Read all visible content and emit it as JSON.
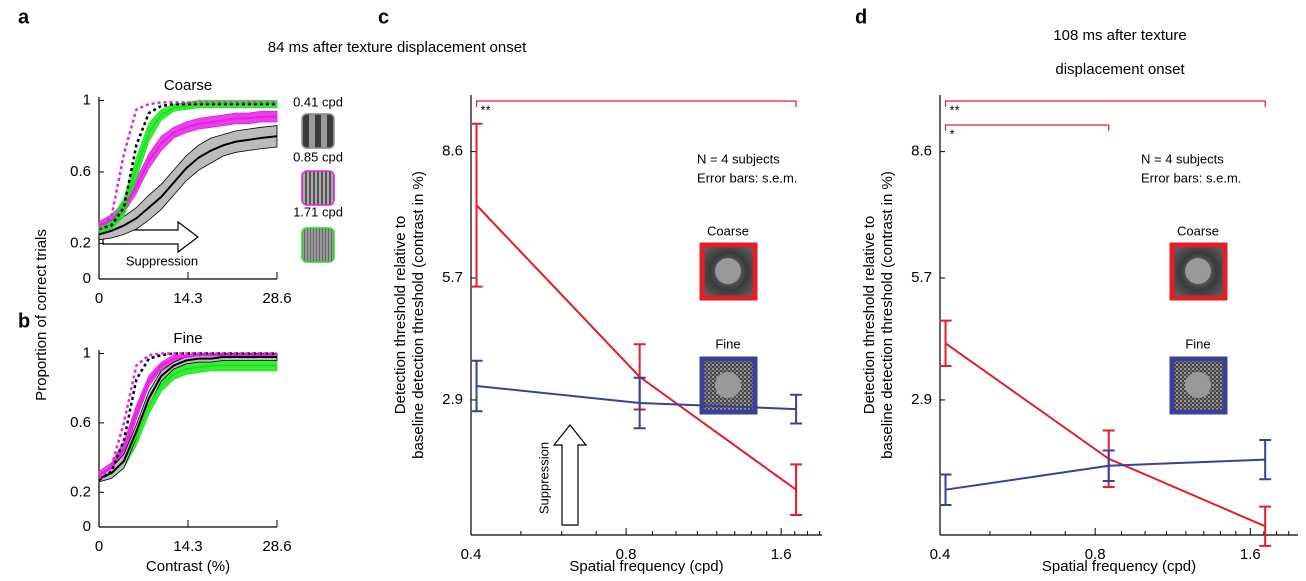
{
  "chart_data": [
    {
      "type": "line",
      "letter": "a",
      "title": "Coarse",
      "ylabel": "Proportion of correct trials",
      "x": [
        0,
        2,
        4,
        6,
        8,
        10,
        12,
        14,
        16,
        18,
        20,
        22,
        24,
        26,
        28.6
      ],
      "xlim": [
        0,
        28.6
      ],
      "xticks": [
        0,
        14.3,
        28.6
      ],
      "ylim": [
        0,
        1.02
      ],
      "yticks": [
        0,
        0.2,
        0.6,
        1
      ],
      "error_style": "band",
      "annotation": "Suppression",
      "series": [
        {
          "name": "0.41 cpd",
          "color": "#000000",
          "values": [
            0.25,
            0.27,
            0.3,
            0.34,
            0.4,
            0.46,
            0.54,
            0.62,
            0.68,
            0.72,
            0.75,
            0.77,
            0.78,
            0.79,
            0.8
          ],
          "errors": [
            0.03,
            0.04,
            0.05,
            0.06,
            0.07,
            0.07,
            0.07,
            0.07,
            0.07,
            0.07,
            0.06,
            0.06,
            0.06,
            0.06,
            0.06
          ]
        },
        {
          "name": "0.85 cpd",
          "color": "#e61ee6",
          "values": [
            0.3,
            0.33,
            0.4,
            0.52,
            0.66,
            0.76,
            0.82,
            0.85,
            0.87,
            0.88,
            0.89,
            0.9,
            0.9,
            0.91,
            0.91
          ],
          "errors": [
            0.02,
            0.03,
            0.03,
            0.04,
            0.04,
            0.04,
            0.03,
            0.03,
            0.03,
            0.03,
            0.03,
            0.03,
            0.03,
            0.03,
            0.03
          ]
        },
        {
          "name": "1.71 cpd",
          "color": "#19e619",
          "values": [
            0.28,
            0.31,
            0.4,
            0.62,
            0.82,
            0.92,
            0.96,
            0.97,
            0.98,
            0.98,
            0.98,
            0.98,
            0.98,
            0.98,
            0.98
          ],
          "errors": [
            0.02,
            0.03,
            0.05,
            0.06,
            0.05,
            0.03,
            0.02,
            0.02,
            0.02,
            0.02,
            0.02,
            0.02,
            0.02,
            0.02,
            0.02
          ]
        },
        {
          "color": "#000000",
          "dashed": true,
          "values": [
            0.28,
            0.3,
            0.4,
            0.75,
            0.93,
            0.97,
            0.98,
            0.98,
            0.98,
            0.98,
            0.98,
            0.98,
            0.98,
            0.98,
            0.98
          ]
        },
        {
          "color": "#e61ee6",
          "dashed": true,
          "values": [
            0.28,
            0.35,
            0.7,
            0.95,
            0.98,
            0.99,
            0.99,
            0.99,
            0.99,
            0.99,
            0.99,
            0.99,
            0.99,
            0.99,
            0.99
          ]
        }
      ]
    },
    {
      "type": "line",
      "letter": "b",
      "title": "Fine",
      "xlabel": "Contrast (%)",
      "x": [
        0,
        2,
        4,
        6,
        8,
        10,
        12,
        14,
        16,
        18,
        20,
        22,
        24,
        26,
        28.6
      ],
      "xlim": [
        0,
        28.6
      ],
      "xticks": [
        0,
        14.3,
        28.6
      ],
      "ylim": [
        0,
        1.02
      ],
      "yticks": [
        0,
        0.2,
        0.6,
        1
      ],
      "error_style": "band",
      "series": [
        {
          "color": "#19e619",
          "values": [
            0.28,
            0.31,
            0.38,
            0.52,
            0.7,
            0.82,
            0.88,
            0.91,
            0.92,
            0.93,
            0.93,
            0.93,
            0.93,
            0.93,
            0.93
          ],
          "errors": [
            0.02,
            0.03,
            0.04,
            0.05,
            0.05,
            0.04,
            0.03,
            0.03,
            0.03,
            0.03,
            0.03,
            0.03,
            0.03,
            0.03,
            0.03
          ]
        },
        {
          "color": "#e61ee6",
          "values": [
            0.3,
            0.34,
            0.45,
            0.66,
            0.84,
            0.93,
            0.97,
            0.98,
            0.99,
            0.99,
            0.99,
            0.99,
            0.99,
            0.99,
            0.99
          ],
          "errors": [
            0.02,
            0.03,
            0.04,
            0.04,
            0.03,
            0.02,
            0.02,
            0.01,
            0.01,
            0.01,
            0.01,
            0.01,
            0.01,
            0.01,
            0.01
          ]
        },
        {
          "color": "#000000",
          "values": [
            0.28,
            0.31,
            0.38,
            0.55,
            0.74,
            0.87,
            0.93,
            0.96,
            0.97,
            0.97,
            0.98,
            0.98,
            0.98,
            0.98,
            0.98
          ],
          "errors": [
            0.02,
            0.03,
            0.04,
            0.04,
            0.04,
            0.03,
            0.02,
            0.02,
            0.02,
            0.02,
            0.02,
            0.02,
            0.02,
            0.02,
            0.02
          ]
        },
        {
          "color": "#000000",
          "dashed": true,
          "values": [
            0.27,
            0.32,
            0.5,
            0.85,
            0.97,
            0.99,
            1,
            1,
            1,
            1,
            1,
            1,
            1,
            1,
            1
          ]
        },
        {
          "color": "#e61ee6",
          "dashed": true,
          "values": [
            0.28,
            0.35,
            0.6,
            0.93,
            0.99,
            1,
            1,
            1,
            1,
            1,
            1,
            1,
            1,
            1,
            1
          ]
        }
      ]
    },
    {
      "type": "line",
      "letter": "c",
      "title": [
        "84 ms after texture displacement onset"
      ],
      "ylabel": [
        "Detection threshold relative to",
        "baseline detection threshold (contrast in %)"
      ],
      "xlabel": "Spatial frequency (cpd)",
      "xscale": "log",
      "x": [
        0.41,
        0.85,
        1.71
      ],
      "xlim": [
        0.4,
        1.92
      ],
      "xticks": [
        0.4,
        0.8,
        1.6
      ],
      "minor_xticks": [
        0.5,
        0.6,
        0.7,
        0.9,
        1.0,
        1.1,
        1.2,
        1.3,
        1.4,
        1.5,
        1.7,
        1.8,
        1.9
      ],
      "ylim": [
        -0.2,
        9.9
      ],
      "yticks": [
        2.9,
        5.7,
        8.6
      ],
      "error_style": "bar",
      "notes": [
        "N = 4 subjects",
        "Error bars: s.e.m."
      ],
      "annotation": "Suppression",
      "significance": [
        {
          "from": 0.41,
          "to": 1.71,
          "label": "**"
        }
      ],
      "series": [
        {
          "name": "Coarse",
          "color": "#e41e26",
          "values": [
            7.37,
            3.43,
            0.84
          ],
          "errors": [
            1.87,
            0.75,
            0.58
          ]
        },
        {
          "name": "Fine",
          "color": "#3a3f98",
          "values": [
            3.22,
            2.83,
            2.69
          ],
          "errors": [
            0.58,
            0.58,
            0.33
          ]
        }
      ]
    },
    {
      "type": "line",
      "letter": "d",
      "title": [
        "108 ms after texture",
        "displacement onset"
      ],
      "ylabel": [
        "Detection threshold relative to",
        "baseline detection threshold (contrast in %)"
      ],
      "xlabel": "Spatial frequency (cpd)",
      "xscale": "log",
      "x": [
        0.41,
        0.85,
        1.71
      ],
      "xlim": [
        0.4,
        1.98
      ],
      "xticks": [
        0.4,
        0.8,
        1.6
      ],
      "minor_xticks": [
        0.5,
        0.6,
        0.7,
        0.9,
        1.0,
        1.1,
        1.2,
        1.3,
        1.4,
        1.5,
        1.7,
        1.8,
        1.9
      ],
      "ylim": [
        -0.2,
        9.9
      ],
      "yticks": [
        2.9,
        5.7,
        8.6
      ],
      "error_style": "bar",
      "notes": [
        "N = 4 subjects",
        "Error bars: s.e.m."
      ],
      "significance": [
        {
          "from": 0.41,
          "to": 1.71,
          "label": "**"
        },
        {
          "from": 0.41,
          "to": 0.85,
          "label": "*"
        }
      ],
      "series": [
        {
          "name": "Coarse",
          "color": "#e41e26",
          "values": [
            4.2,
            1.55,
            0.0
          ],
          "errors": [
            0.52,
            0.65,
            0.45
          ]
        },
        {
          "name": "Fine",
          "color": "#3a3f98",
          "values": [
            0.84,
            1.39,
            1.53
          ],
          "errors": [
            0.35,
            0.35,
            0.45
          ]
        }
      ]
    }
  ]
}
